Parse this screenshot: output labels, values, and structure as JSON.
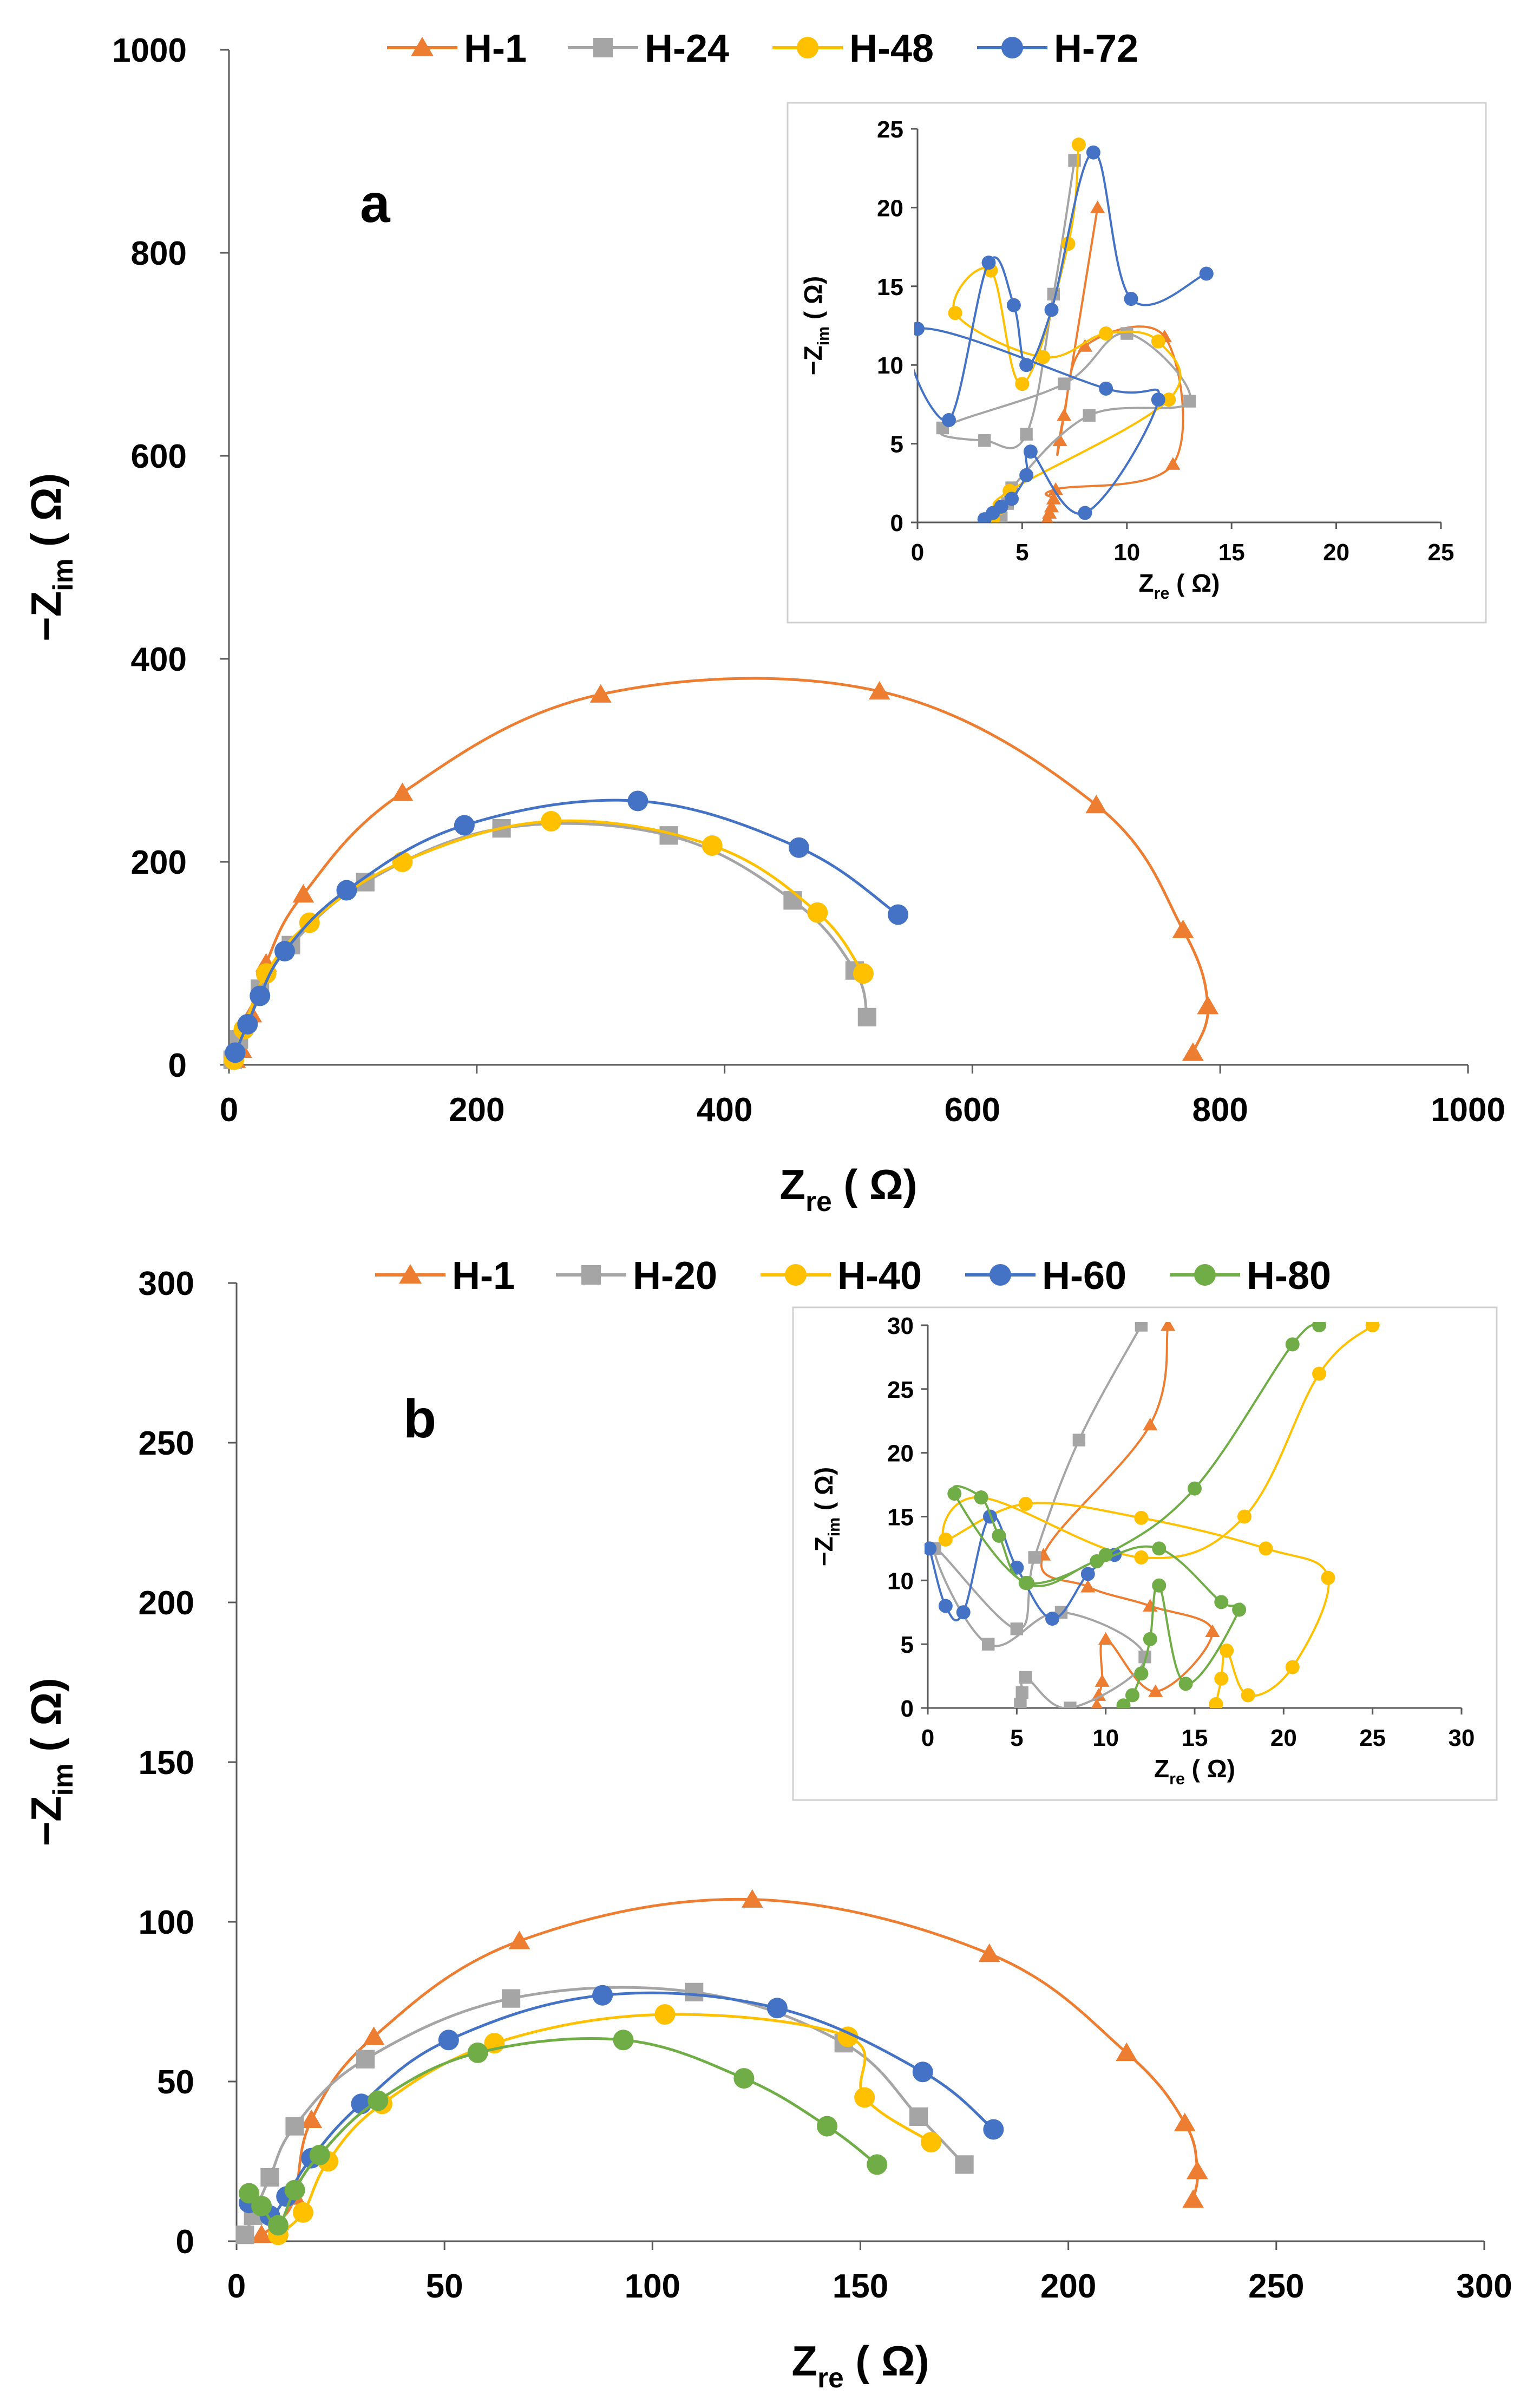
{
  "chart_data": [
    {
      "panel": "a",
      "type": "scatter",
      "label": "a",
      "xlabel_main": "Z",
      "xlabel_sub": "re",
      "xlabel_unit": "( Ω)",
      "ylabel_main": "−Z",
      "ylabel_sub": "im",
      "ylabel_unit": "( Ω)",
      "xlim": [
        0,
        1000
      ],
      "ylim": [
        0,
        1000
      ],
      "xticks": [
        0,
        200,
        400,
        600,
        800,
        1000
      ],
      "yticks": [
        0,
        200,
        400,
        600,
        800,
        1000
      ],
      "series": [
        {
          "name": "H-1",
          "color": "#ED7D31",
          "marker": "triangle",
          "x": [
            5,
            10,
            18,
            30,
            60,
            140,
            300,
            525,
            700,
            770,
            790,
            778
          ],
          "y": [
            5,
            15,
            50,
            100,
            168,
            268,
            365,
            368,
            256,
            133,
            58,
            12
          ]
        },
        {
          "name": "H-24",
          "color": "#A5A5A5",
          "marker": "square",
          "x": [
            3,
            8,
            25,
            50,
            110,
            220,
            355,
            455,
            505,
            515
          ],
          "y": [
            5,
            25,
            75,
            118,
            180,
            233,
            226,
            162,
            93,
            47
          ]
        },
        {
          "name": "H-48",
          "color": "#FFC000",
          "marker": "circle",
          "x": [
            4,
            12,
            30,
            65,
            140,
            260,
            390,
            475,
            512
          ],
          "y": [
            5,
            35,
            90,
            140,
            200,
            240,
            216,
            150,
            90
          ]
        },
        {
          "name": "H-72",
          "color": "#4472C4",
          "marker": "circle",
          "x": [
            5,
            15,
            25,
            45,
            95,
            190,
            330,
            460,
            540
          ],
          "y": [
            12,
            40,
            68,
            112,
            172,
            236,
            260,
            214,
            148
          ]
        }
      ],
      "inset": {
        "xlabel_main": "Z",
        "xlabel_sub": "re",
        "xlabel_unit": "( Ω)",
        "ylabel_main": "−Z",
        "ylabel_sub": "im",
        "ylabel_unit": "( Ω)",
        "xlim": [
          0,
          25
        ],
        "ylim": [
          0,
          25
        ],
        "xticks": [
          0,
          5,
          10,
          15,
          20,
          25
        ],
        "yticks": [
          0,
          5,
          10,
          15,
          20,
          25
        ],
        "series": [
          {
            "name": "H-1",
            "x": [
              6.2,
              6.3,
              6.4,
              6.5,
              6.6,
              12.2,
              11.8,
              8.0,
              7.0,
              6.8,
              8.6
            ],
            "y": [
              0.2,
              0.6,
              1.0,
              1.5,
              2.1,
              3.7,
              11.8,
              11.2,
              6.8,
              5.2,
              20
            ]
          },
          {
            "name": "H-24",
            "x": [
              4.0,
              4.3,
              4.5,
              8.2,
              13.0,
              10.0,
              7.0,
              1.2,
              3.2,
              5.2,
              6.5,
              7.5
            ],
            "y": [
              0.3,
              1.2,
              2.2,
              6.8,
              7.7,
              12.0,
              8.8,
              6.0,
              5.2,
              5.6,
              14.5,
              23
            ]
          },
          {
            "name": "H-48",
            "x": [
              3.6,
              3.9,
              4.4,
              12.0,
              11.5,
              9.0,
              6.0,
              1.8,
              3.5,
              5.0,
              7.2,
              7.7
            ],
            "y": [
              0.2,
              0.9,
              2.0,
              7.8,
              11.5,
              12.0,
              10.5,
              13.3,
              16.0,
              8.8,
              17.7,
              24
            ]
          },
          {
            "name": "H-72",
            "x": [
              3.2,
              3.6,
              4.0,
              4.5,
              5.2,
              5.4,
              8.0,
              11.5,
              9.0,
              0.0,
              1.5,
              3.4,
              4.6,
              5.2,
              6.4,
              8.4,
              10.2,
              13.8
            ],
            "y": [
              0.2,
              0.6,
              1.0,
              1.5,
              3.0,
              4.5,
              0.6,
              7.8,
              8.5,
              12.3,
              6.5,
              16.5,
              13.8,
              10.0,
              13.5,
              23.5,
              14.2,
              15.8
            ]
          }
        ]
      }
    },
    {
      "panel": "b",
      "type": "scatter",
      "label": "b",
      "xlabel_main": "Z",
      "xlabel_sub": "re",
      "xlabel_unit": "( Ω)",
      "ylabel_main": "−Z",
      "ylabel_sub": "im",
      "ylabel_unit": "( Ω)",
      "xlim": [
        0,
        300
      ],
      "ylim": [
        0,
        300
      ],
      "xticks": [
        0,
        50,
        100,
        150,
        200,
        250,
        300
      ],
      "yticks": [
        0,
        50,
        100,
        150,
        200,
        250,
        300
      ],
      "series": [
        {
          "name": "H-1",
          "color": "#ED7D31",
          "marker": "triangle",
          "x": [
            6,
            10,
            14,
            18,
            33,
            68,
            124,
            181,
            214,
            228,
            231,
            230
          ],
          "y": [
            2,
            6,
            14,
            38,
            64,
            94,
            107,
            90,
            59,
            37,
            22,
            13
          ]
        },
        {
          "name": "H-20",
          "color": "#A5A5A5",
          "marker": "square",
          "x": [
            2,
            4,
            8,
            14,
            31,
            66,
            110,
            146,
            164,
            175
          ],
          "y": [
            2,
            8,
            20,
            36,
            57,
            76,
            78,
            62,
            39,
            24
          ]
        },
        {
          "name": "H-40",
          "color": "#FFC000",
          "marker": "circle",
          "x": [
            10,
            16,
            22,
            35,
            62,
            103,
            147,
            151,
            167
          ],
          "y": [
            2,
            9,
            25,
            43,
            62,
            71,
            64,
            45,
            31
          ]
        },
        {
          "name": "H-60",
          "color": "#4472C4",
          "marker": "circle",
          "x": [
            3,
            8,
            12,
            18,
            30,
            51,
            88,
            130,
            165,
            182
          ],
          "y": [
            12,
            8,
            14,
            26,
            43,
            63,
            77,
            73,
            53,
            35
          ]
        },
        {
          "name": "H-80",
          "color": "#70AD47",
          "marker": "circle",
          "x": [
            3,
            6,
            10,
            14,
            20,
            34,
            58,
            93,
            122,
            142,
            154
          ],
          "y": [
            15,
            11,
            5,
            16,
            27,
            44,
            59,
            63,
            51,
            36,
            24
          ]
        }
      ],
      "inset": {
        "xlabel_main": "Z",
        "xlabel_sub": "re",
        "xlabel_unit": "( Ω)",
        "ylabel_main": "−Z",
        "ylabel_sub": "im",
        "ylabel_unit": "( Ω)",
        "xlim": [
          0,
          30
        ],
        "ylim": [
          0,
          30
        ],
        "xticks": [
          0,
          5,
          10,
          15,
          20,
          25,
          30
        ],
        "yticks": [
          0,
          5,
          10,
          15,
          20,
          25,
          30
        ],
        "series": [
          {
            "name": "H-1",
            "x": [
              9.5,
              9.6,
              9.8,
              10.0,
              12.8,
              16.0,
              12.5,
              9.0,
              6.5,
              12.5,
              13.5
            ],
            "y": [
              0.2,
              1.0,
              2.1,
              5.4,
              1.3,
              6.0,
              8.0,
              9.5,
              12.0,
              22.2,
              30
            ]
          },
          {
            "name": "H-20",
            "x": [
              5.2,
              5.3,
              5.5,
              8.0,
              12.2,
              7.5,
              3.4,
              0.4,
              5.0,
              6.0,
              8.5,
              12.0
            ],
            "y": [
              0.3,
              1.2,
              2.4,
              0.0,
              4.0,
              7.5,
              5.0,
              12.5,
              6.2,
              11.8,
              21.0,
              30
            ]
          },
          {
            "name": "H-40",
            "x": [
              16.2,
              16.5,
              16.8,
              18.0,
              20.5,
              22.5,
              19.0,
              12.0,
              5.5,
              1.0,
              3.0,
              12.0,
              17.8,
              22.0,
              25.0
            ],
            "y": [
              0.3,
              2.3,
              4.5,
              1.0,
              3.2,
              10.2,
              12.5,
              14.9,
              16.0,
              13.2,
              16.5,
              11.8,
              15.0,
              26.2,
              30
            ]
          },
          {
            "name": "H-60",
            "x": [
              0.1,
              1.0,
              2.0,
              3.5,
              5.0,
              7.0,
              9.0,
              10.5
            ],
            "y": [
              12.5,
              8.0,
              7.5,
              15.0,
              11.0,
              7.0,
              10.5,
              12.0
            ]
          },
          {
            "name": "H-80",
            "x": [
              11.0,
              11.5,
              12.0,
              12.5,
              13.0,
              14.5,
              17.5,
              16.5,
              13.0,
              9.5,
              5.5,
              1.5,
              3.0,
              4.0,
              5.6,
              10.0,
              15.0,
              20.5,
              22.0
            ],
            "y": [
              0.2,
              1.0,
              2.7,
              5.4,
              9.6,
              1.9,
              7.7,
              8.3,
              12.5,
              11.5,
              9.8,
              16.8,
              16.5,
              13.5,
              9.8,
              12.0,
              17.2,
              28.5,
              30
            ]
          }
        ]
      }
    }
  ]
}
